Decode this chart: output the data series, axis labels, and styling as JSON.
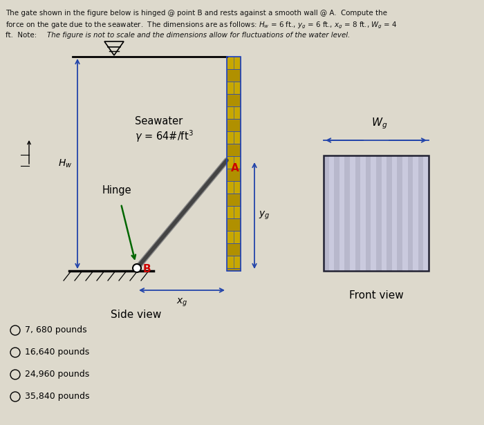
{
  "bg_color": "#ddd9cc",
  "title_line1": "The gate shown in the figure below is hinged @ point B and rests against a smooth wall @ A.  Compute the",
  "title_line2": "force on the gate due to the seawater.  The dimensions are as follows: $H_w$ = 6 ft., $y_g$ = 6 ft., $x_g$ = 8 ft., $W_g$ = 4",
  "title_line3_normal": "ft.  Note:  ",
  "title_line3_italic": "The figure is not to scale and the dimensions allow for fluctuations of the water level.",
  "choices": [
    "7, 680 pounds",
    "16,640 pounds",
    "24,960 pounds",
    "35,840 pounds"
  ],
  "arrow_color": "#2244aa",
  "gate_color": "#555555",
  "brick_color1": "#c8a800",
  "brick_color2": "#b09000",
  "brick_edge_color": "#2244bb",
  "front_stripe1": "#b8b8cc",
  "front_stripe2": "#cacade",
  "front_edge_color": "#222233",
  "green_arrow": "#006600",
  "red_label": "#cc0000",
  "text_color": "#111111"
}
